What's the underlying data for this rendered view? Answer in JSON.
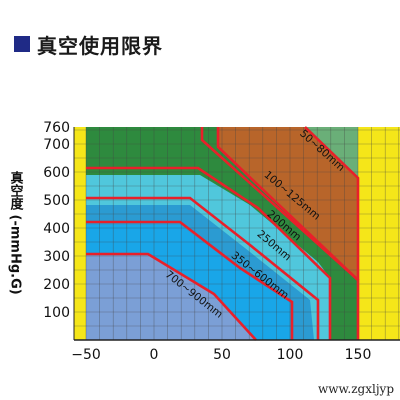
{
  "title": "真空使用限界",
  "watermark": "www.zgxljyp",
  "chart_data": {
    "type": "area",
    "title": "真空使用限界",
    "ylabel": "真空度 (-mmHg.G)",
    "xlabel": "",
    "xlim": [
      -50,
      150
    ],
    "ylim": [
      0,
      760
    ],
    "x_ticks": [
      "−50",
      "0",
      "50",
      "100",
      "150"
    ],
    "y_ticks": [
      "100",
      "200",
      "300",
      "400",
      "500",
      "600",
      "700",
      "760"
    ],
    "grid": true,
    "background_color": "#f5e619",
    "boundary_color": "#e8202a",
    "series": [
      {
        "name": "50~80mm",
        "color": "#b8652a"
      },
      {
        "name": "100~125mm",
        "color": "#2e8a3e"
      },
      {
        "name": "200mm",
        "color": "#50c7dc"
      },
      {
        "name": "250mm",
        "color": "#2b9bd2"
      },
      {
        "name": "350~600mm",
        "color": "#19a6e8"
      },
      {
        "name": "700~900mm",
        "color": "#7b9fd6"
      }
    ]
  }
}
